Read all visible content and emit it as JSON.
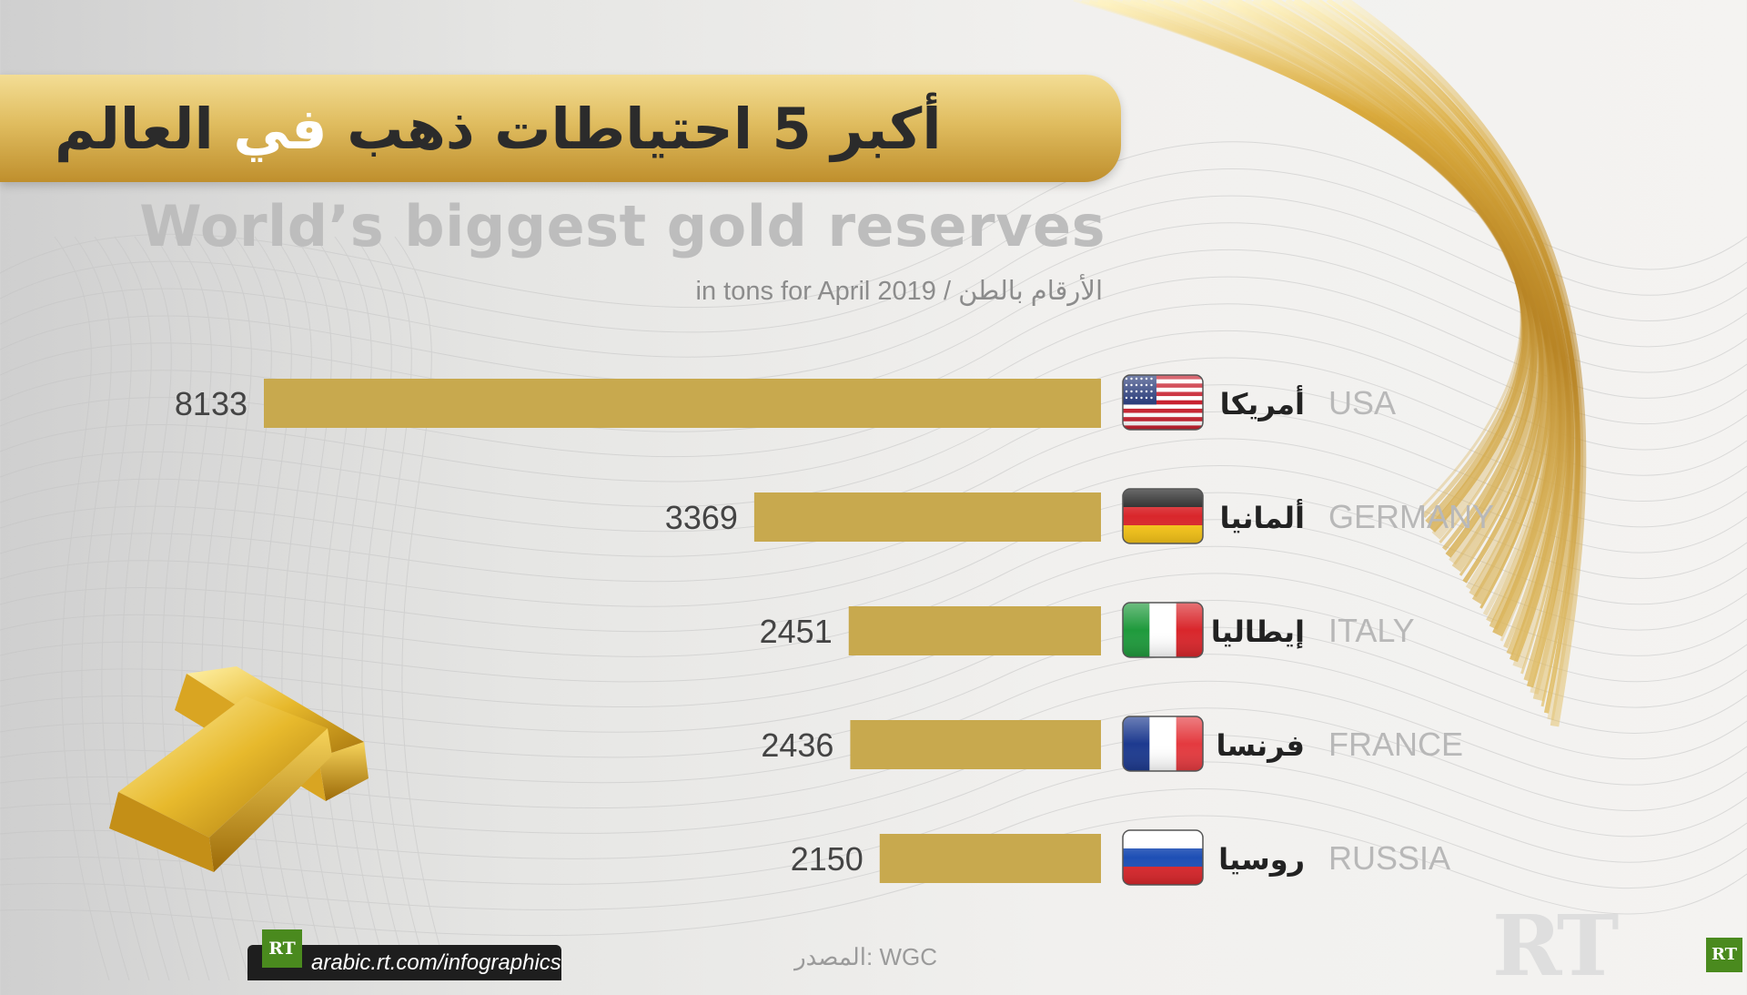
{
  "title_ar": {
    "part1": "أكبر 5 احتياطات ذهب",
    "part2": "في",
    "part3": "العالم"
  },
  "title_en": "World’s biggest gold reserves",
  "subtitle": "in tons for April 2019  /  الأرقام بالطن",
  "chart_data": {
    "type": "bar",
    "orientation": "horizontal",
    "categories": [
      "USA",
      "GERMANY",
      "ITALY",
      "FRANCE",
      "RUSSIA"
    ],
    "categories_ar": [
      "أمريكا",
      "ألمانيا",
      "إيطاليا",
      "فرنسا",
      "روسيا"
    ],
    "values": [
      8133,
      3369,
      2451,
      2436,
      2150
    ],
    "flag_icons": [
      "usa-flag-icon",
      "germany-flag-icon",
      "italy-flag-icon",
      "france-flag-icon",
      "russia-flag-icon"
    ],
    "bar_color": "#c8a94e",
    "grid": false
  },
  "source": "المصدر: WGC",
  "footer": {
    "logo": "RT",
    "url": "arabic.rt.com/infographics"
  },
  "watermark": "RT",
  "colors": {
    "gold": "#c8a94e",
    "title_text": "#2b2b2b",
    "title_highlight": "#ffffff",
    "label_grey": "#b8b8b8",
    "value_text": "#444444"
  }
}
